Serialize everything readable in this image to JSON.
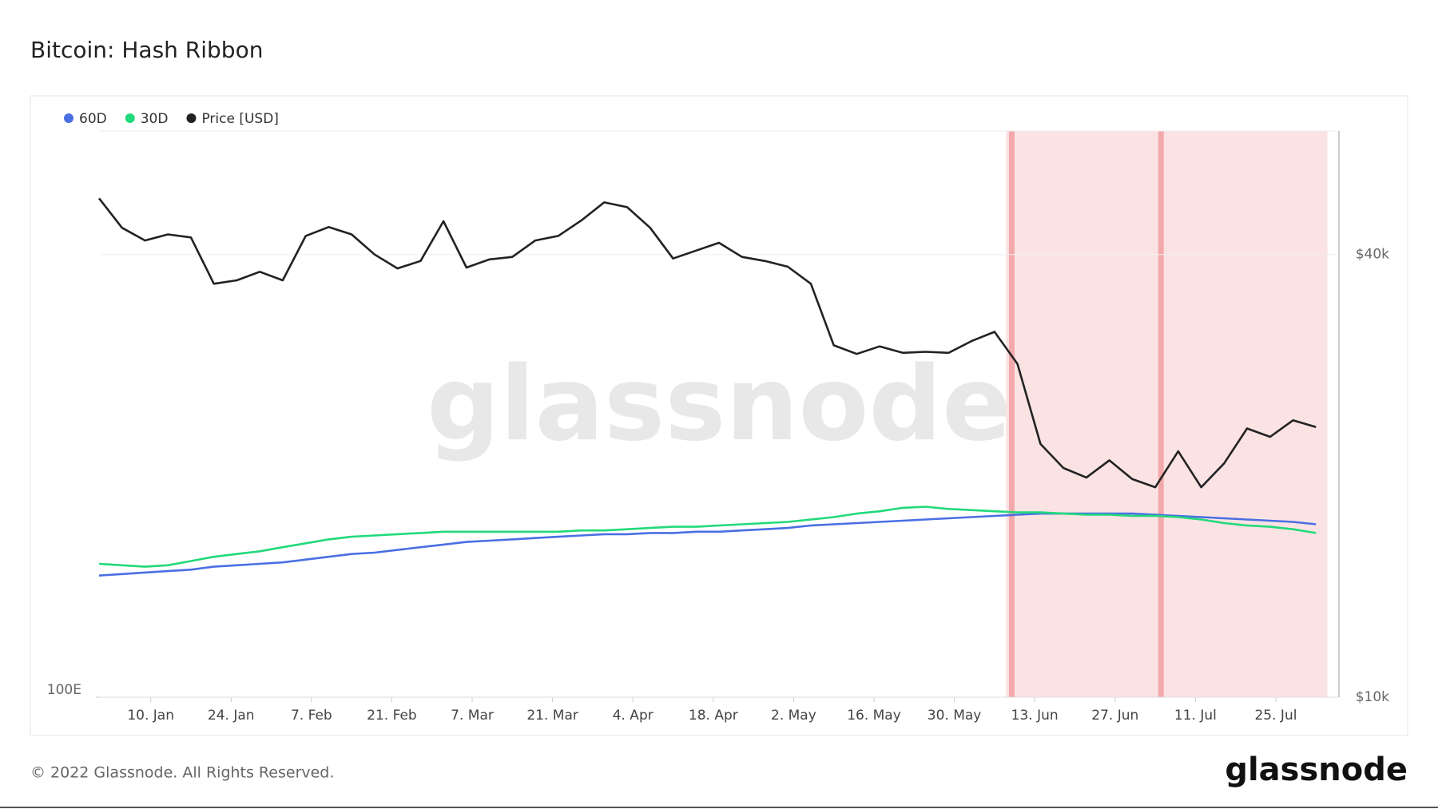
{
  "chart_data": {
    "type": "line",
    "title": "Bitcoin: Hash Ribbon",
    "x": [
      "1. Jan",
      "5. Jan",
      "9. Jan",
      "13. Jan",
      "17. Jan",
      "21. Jan",
      "25. Jan",
      "29. Jan",
      "2. Feb",
      "6. Feb",
      "10. Feb",
      "14. Feb",
      "18. Feb",
      "22. Feb",
      "26. Feb",
      "2. Mar",
      "6. Mar",
      "10. Mar",
      "14. Mar",
      "18. Mar",
      "22. Mar",
      "26. Mar",
      "30. Mar",
      "3. Apr",
      "7. Apr",
      "11. Apr",
      "15. Apr",
      "19. Apr",
      "23. Apr",
      "27. Apr",
      "1. May",
      "5. May",
      "9. May",
      "13. May",
      "17. May",
      "21. May",
      "25. May",
      "29. May",
      "2. Jun",
      "6. Jun",
      "10. Jun",
      "14. Jun",
      "18. Jun",
      "22. Jun",
      "26. Jun",
      "30. Jun",
      "4. Jul",
      "8. Jul",
      "12. Jul",
      "16. Jul",
      "20. Jul",
      "24. Jul",
      "28. Jul",
      "1. Aug"
    ],
    "series": [
      {
        "name": "60D",
        "color": "#4a6fe3",
        "values": [
          164,
          165,
          166,
          167,
          168,
          170,
          171,
          172,
          173,
          175,
          177,
          179,
          180,
          182,
          184,
          186,
          188,
          189,
          190,
          191,
          192,
          193,
          194,
          194,
          195,
          195,
          196,
          196,
          197,
          198,
          199,
          201,
          202,
          203,
          204,
          205,
          206,
          207,
          208,
          209,
          210,
          211,
          211,
          211,
          211,
          211,
          210,
          209,
          208,
          207,
          206,
          205,
          204,
          202
        ]
      },
      {
        "name": "30D",
        "color": "#22d97a",
        "values": [
          172,
          171,
          170,
          171,
          174,
          177,
          179,
          181,
          184,
          187,
          190,
          192,
          193,
          194,
          195,
          196,
          196,
          196,
          196,
          196,
          196,
          197,
          197,
          198,
          199,
          200,
          200,
          201,
          202,
          203,
          204,
          206,
          208,
          211,
          213,
          216,
          217,
          215,
          214,
          213,
          212,
          212,
          211,
          210,
          210,
          209,
          209,
          208,
          206,
          203,
          201,
          200,
          198,
          195
        ]
      },
      {
        "name": "Price [USD]",
        "color": "#222222",
        "axis": "y2",
        "values": [
          47700,
          43500,
          41800,
          42600,
          42200,
          36500,
          36900,
          37900,
          36900,
          42400,
          43600,
          42600,
          40000,
          38300,
          39200,
          44400,
          38400,
          39400,
          39700,
          41800,
          42400,
          44500,
          47100,
          46400,
          43500,
          39500,
          40500,
          41500,
          39700,
          39200,
          38500,
          36500,
          30100,
          29300,
          30000,
          29400,
          29500,
          29400,
          30500,
          31400,
          28400,
          22100,
          20500,
          19900,
          21000,
          19800,
          19300,
          21600,
          19300,
          20800,
          23200,
          22600,
          23800,
          23300
        ]
      }
    ],
    "xlim": [
      "1. Jan",
      "5. Aug"
    ],
    "xticks": [
      "10. Jan",
      "24. Jan",
      "7. Feb",
      "21. Feb",
      "7. Mar",
      "21. Mar",
      "4. Apr",
      "18. Apr",
      "2. May",
      "16. May",
      "30. May",
      "13. Jun",
      "27. Jun",
      "11. Jul",
      "25. Jul"
    ],
    "ylim": [
      100,
      1000
    ],
    "yticks": [
      {
        "value": 100,
        "label": "100E"
      }
    ],
    "y2lim": [
      10000,
      58900
    ],
    "y2ticks": [
      {
        "value": 10000,
        "label": "$10k"
      },
      {
        "value": 40000,
        "label": "$40k"
      }
    ],
    "log_scale": true,
    "grid": true,
    "legend": "top-left",
    "shaded_ranges": [
      {
        "start": "8. Jun",
        "end": "3. Aug",
        "color": "#fbe3e4"
      }
    ],
    "markers": [
      {
        "x": "9. Jun",
        "color": "#f3a9ab"
      },
      {
        "x": "5. Jul",
        "color": "#f3a9ab"
      }
    ]
  },
  "brand": "glassnode",
  "footer": "© 2022 Glassnode. All Rights Reserved."
}
